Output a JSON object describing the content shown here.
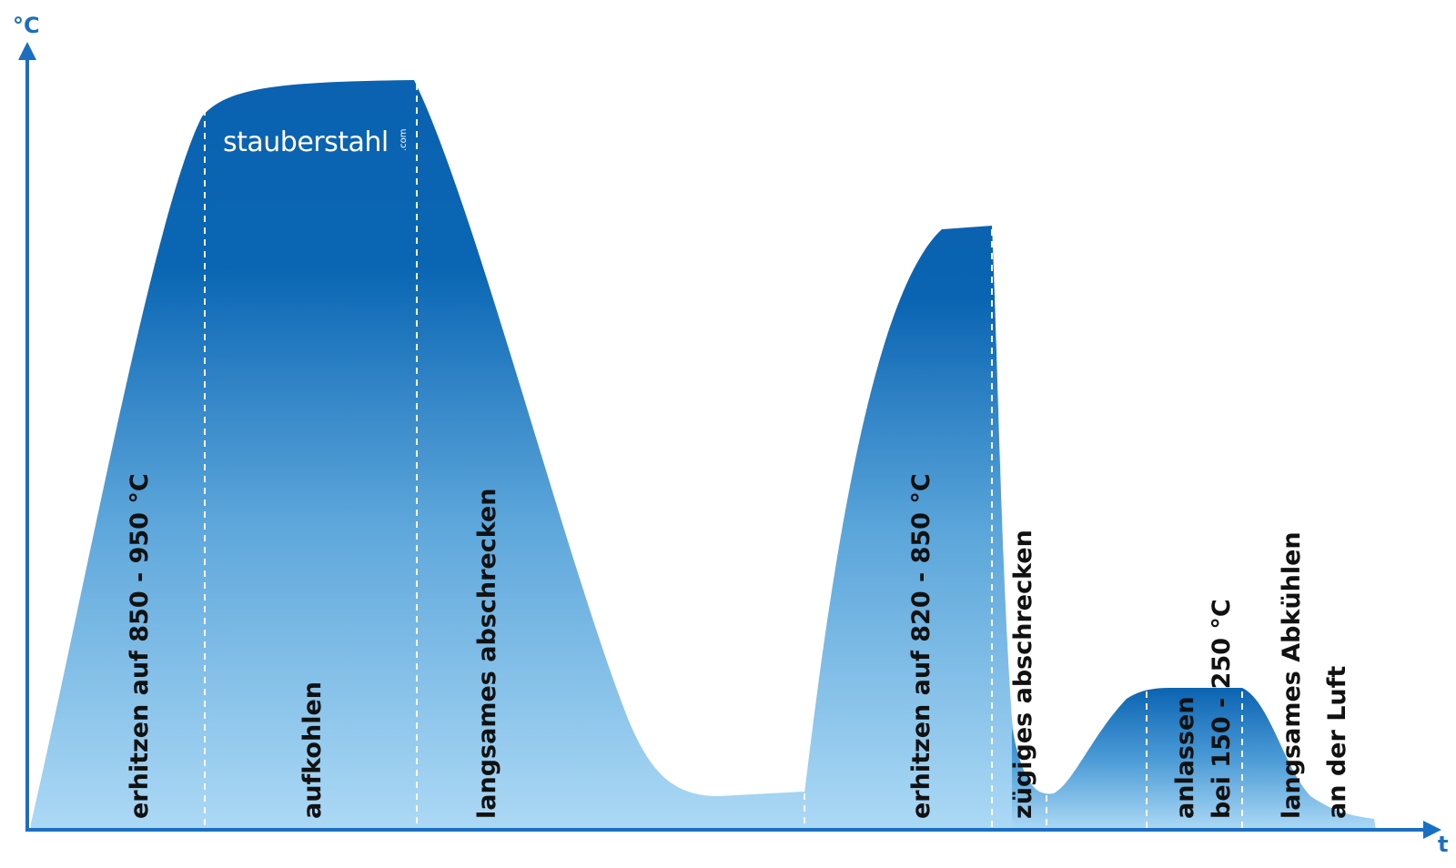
{
  "axes": {
    "y_label": "°C",
    "x_label": "t"
  },
  "logo": {
    "main": "stauberstahl",
    "suffix": ".com"
  },
  "stages": [
    {
      "id": "heat-1",
      "lines": [
        "erhitzen auf 850 - 950 °C"
      ]
    },
    {
      "id": "carburize",
      "lines": [
        "aufkohlen"
      ]
    },
    {
      "id": "slow-quench",
      "lines": [
        "langsames abschrecken"
      ]
    },
    {
      "id": "heat-2",
      "lines": [
        "erhitzen auf 820 - 850 °C"
      ]
    },
    {
      "id": "fast-quench",
      "lines": [
        "zügiges abschrecken"
      ]
    },
    {
      "id": "temper",
      "lines": [
        "anlassen",
        "bei 150 - 250 °C"
      ]
    },
    {
      "id": "air-cool",
      "lines": [
        "langsames Abkühlen",
        "an der Luft"
      ]
    }
  ],
  "colors": {
    "axis": "#1a6fc0",
    "fill_dark": "#0a62b0",
    "fill_light": "#a9d7f4"
  }
}
